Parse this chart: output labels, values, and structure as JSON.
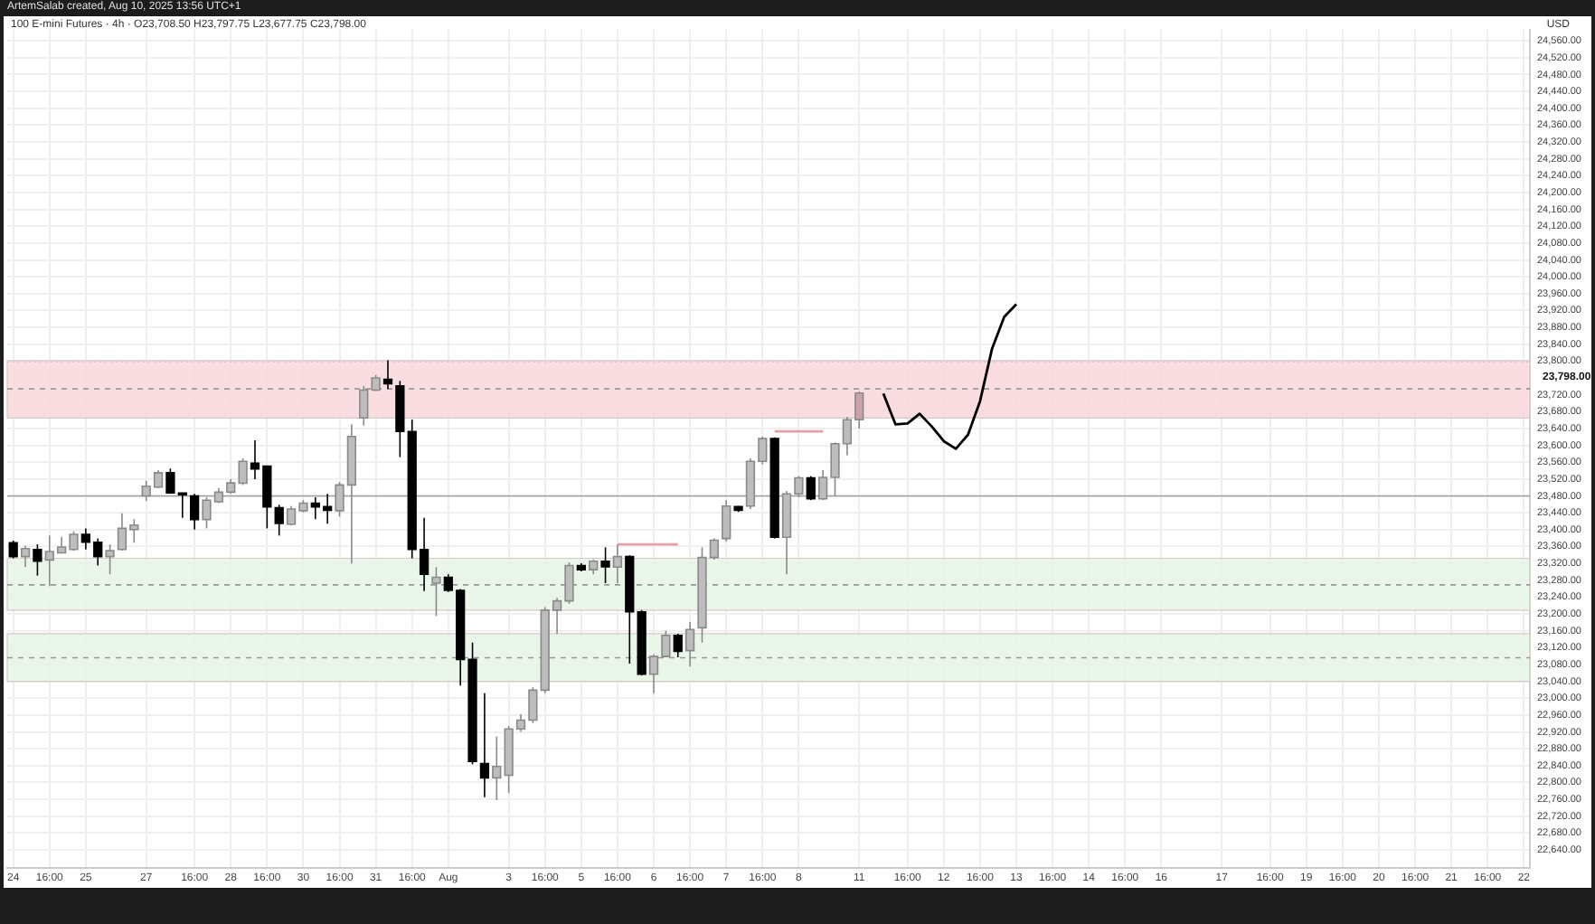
{
  "chart_data": {
    "type": "candlestick",
    "title": "100 E-mini Futures · 4h · O23,708.50 H23,797.75 L23,677.75 C23,798.00",
    "ylabel": "USD",
    "annotations": [
      "ArtemSalab created, Aug 10, 2025 13:56 UTC+1"
    ],
    "categories": [
      "24",
      null,
      null,
      "16:00",
      null,
      null,
      "25",
      null,
      null,
      null,
      null,
      "27",
      null,
      null,
      null,
      "16:00",
      null,
      null,
      "28",
      null,
      null,
      "16:00",
      null,
      null,
      "30",
      null,
      null,
      "16:00",
      null,
      null,
      "31",
      null,
      null,
      "16:00",
      null,
      null,
      "Aug",
      null,
      null,
      null,
      null,
      "3",
      null,
      null,
      "16:00",
      null,
      null,
      "5",
      null,
      null,
      "16:00",
      null,
      null,
      "6",
      null,
      null,
      "16:00",
      null,
      null,
      "7",
      null,
      null,
      "16:00",
      null,
      null,
      "8",
      null,
      null,
      null,
      null,
      "11",
      null,
      null,
      null,
      "16:00",
      null,
      null,
      "12",
      null,
      null,
      "16:00",
      null,
      null,
      "13",
      null,
      null,
      "16:00",
      null,
      null,
      "14",
      null,
      null,
      "16:00",
      null,
      null,
      "16",
      null,
      null,
      null,
      null,
      "17",
      null,
      null,
      null,
      "16:00",
      null,
      null,
      "19",
      null,
      null,
      "16:00",
      null,
      null,
      "20",
      null,
      null,
      "16:00",
      null,
      null,
      "21",
      null,
      null,
      "16:00",
      null,
      null,
      "22"
    ],
    "ohlc": [
      [
        23369,
        23374,
        23332,
        23336
      ],
      [
        23336,
        23362,
        23311,
        23355
      ],
      [
        23353,
        23365,
        23291,
        23325
      ],
      [
        23328,
        23386,
        23266,
        23348
      ],
      [
        23345,
        23383,
        23345,
        23359
      ],
      [
        23353,
        23396,
        23350,
        23389
      ],
      [
        23389,
        23403,
        23353,
        23370
      ],
      [
        23370,
        23379,
        23315,
        23336
      ],
      [
        23336,
        23365,
        23294,
        23350
      ],
      [
        23353,
        23439,
        23350,
        23403
      ],
      [
        23400,
        23425,
        23369,
        23411
      ],
      [
        23480,
        23516,
        23468,
        23503
      ],
      [
        23501,
        23541,
        23499,
        23535
      ],
      [
        23535,
        23545,
        23485,
        23487
      ],
      [
        23487,
        23487,
        23428,
        23483
      ],
      [
        23480,
        23485,
        23400,
        23424
      ],
      [
        23424,
        23477,
        23403,
        23470
      ],
      [
        23466,
        23499,
        23463,
        23489
      ],
      [
        23489,
        23520,
        23485,
        23511
      ],
      [
        23510,
        23569,
        23506,
        23562
      ],
      [
        23558,
        23612,
        23520,
        23544
      ],
      [
        23551,
        23551,
        23403,
        23454
      ],
      [
        23452,
        23459,
        23386,
        23415
      ],
      [
        23413,
        23456,
        23410,
        23449
      ],
      [
        23445,
        23470,
        23441,
        23463
      ],
      [
        23463,
        23477,
        23425,
        23454
      ],
      [
        23455,
        23485,
        23414,
        23446
      ],
      [
        23445,
        23513,
        23431,
        23506
      ],
      [
        23506,
        23650,
        23319,
        23621
      ],
      [
        23665,
        23741,
        23647,
        23731
      ],
      [
        23731,
        23767,
        23729,
        23760
      ],
      [
        23757,
        23802,
        23734,
        23746
      ],
      [
        23741,
        23753,
        23572,
        23633
      ],
      [
        23633,
        23661,
        23332,
        23353
      ],
      [
        23353,
        23428,
        23254,
        23294
      ],
      [
        23273,
        23311,
        23195,
        23287
      ],
      [
        23287,
        23294,
        23252,
        23256
      ],
      [
        23256,
        23259,
        23030,
        23092
      ],
      [
        23092,
        23132,
        22843,
        22850
      ],
      [
        22845,
        23012,
        22765,
        22811
      ],
      [
        22811,
        22909,
        22758,
        22838
      ],
      [
        22817,
        22934,
        22775,
        22927
      ],
      [
        22927,
        22962,
        22920,
        22948
      ],
      [
        22948,
        23026,
        22941,
        23019
      ],
      [
        23019,
        23216,
        23012,
        23209
      ],
      [
        23209,
        23238,
        23153,
        23231
      ],
      [
        23231,
        23322,
        23224,
        23315
      ],
      [
        23315,
        23320,
        23301,
        23305
      ],
      [
        23305,
        23329,
        23294,
        23325
      ],
      [
        23325,
        23358,
        23273,
        23312
      ],
      [
        23311,
        23365,
        23273,
        23336
      ],
      [
        23336,
        23339,
        23082,
        23205
      ],
      [
        23205,
        23209,
        23054,
        23057
      ],
      [
        23057,
        23104,
        23012,
        23099
      ],
      [
        23099,
        23160,
        23097,
        23149
      ],
      [
        23149,
        23153,
        23097,
        23111
      ],
      [
        23113,
        23181,
        23075,
        23163
      ],
      [
        23167,
        23358,
        23132,
        23334
      ],
      [
        23334,
        23379,
        23329,
        23375
      ],
      [
        23379,
        23470,
        23372,
        23456
      ],
      [
        23455,
        23456,
        23442,
        23446
      ],
      [
        23456,
        23569,
        23449,
        23562
      ],
      [
        23562,
        23621,
        23555,
        23616
      ],
      [
        23616,
        23619,
        23379,
        23382
      ],
      [
        23382,
        23492,
        23294,
        23485
      ],
      [
        23485,
        23527,
        23477,
        23523
      ],
      [
        23523,
        23527,
        23470,
        23473
      ],
      [
        23473,
        23541,
        23470,
        23524
      ],
      [
        23524,
        23607,
        23480,
        23604
      ],
      [
        23604,
        23668,
        23576,
        23661
      ],
      [
        23661,
        23728,
        23640,
        23724
      ],
      null,
      null,
      null,
      null,
      null,
      null,
      null,
      null,
      null,
      null,
      null,
      null,
      null,
      null,
      null,
      null,
      null,
      null,
      null,
      null,
      null,
      null,
      null,
      null,
      null,
      null,
      null,
      null,
      null,
      null,
      null,
      null,
      null,
      null,
      null,
      null,
      null,
      null,
      null,
      null,
      null,
      null,
      null,
      null,
      null,
      null,
      null,
      null,
      null,
      null,
      null,
      null,
      null,
      null,
      null
    ],
    "colors": [
      "#000000",
      "#bdbdbd",
      "#000000",
      "#bdbdbd",
      "#bdbdbd",
      "#bdbdbd",
      "#000000",
      "#000000",
      "#bdbdbd",
      "#bdbdbd",
      "#bdbdbd",
      "#bdbdbd",
      "#bdbdbd",
      "#000000",
      "#000000",
      "#000000",
      "#bdbdbd",
      "#bdbdbd",
      "#bdbdbd",
      "#bdbdbd",
      "#000000",
      "#000000",
      "#000000",
      "#bdbdbd",
      "#bdbdbd",
      "#000000",
      "#000000",
      "#bdbdbd",
      "#bdbdbd",
      "#bdbdbd",
      "#bdbdbd",
      "#000000",
      "#000000",
      "#000000",
      "#000000",
      "#bdbdbd",
      "#000000",
      "#000000",
      "#000000",
      "#000000",
      "#bdbdbd",
      "#bdbdbd",
      "#bdbdbd",
      "#bdbdbd",
      "#bdbdbd",
      "#bdbdbd",
      "#bdbdbd",
      "#000000",
      "#bdbdbd",
      "#000000",
      "#bdbdbd",
      "#000000",
      "#000000",
      "#bdbdbd",
      "#bdbdbd",
      "#000000",
      "#bdbdbd",
      "#bdbdbd",
      "#bdbdbd",
      "#bdbdbd",
      "#000000",
      "#bdbdbd",
      "#bdbdbd",
      "#000000",
      "#bdbdbd",
      "#bdbdbd",
      "#000000",
      "#bdbdbd",
      "#bdbdbd",
      "#bdbdbd",
      "#c9a3a8",
      null,
      null,
      null,
      null,
      null,
      null,
      null,
      null,
      null,
      null,
      null,
      null,
      null,
      null,
      null,
      null,
      null,
      null,
      null,
      null,
      null,
      null,
      null,
      null,
      null,
      null,
      null,
      null,
      null,
      null,
      null,
      null,
      null,
      null,
      null,
      null,
      null,
      null,
      null,
      null,
      null,
      null,
      null,
      null,
      null,
      null,
      null,
      null,
      null,
      null,
      null,
      null,
      null,
      null,
      null
    ],
    "series": [
      {
        "type": "line",
        "color": "#000000",
        "values": [
          null,
          null,
          null,
          null,
          null,
          null,
          null,
          null,
          null,
          null,
          null,
          null,
          null,
          null,
          null,
          null,
          null,
          null,
          null,
          null,
          null,
          null,
          null,
          null,
          null,
          null,
          null,
          null,
          null,
          null,
          null,
          null,
          null,
          null,
          null,
          null,
          null,
          null,
          null,
          null,
          null,
          null,
          null,
          null,
          null,
          null,
          null,
          null,
          null,
          null,
          null,
          null,
          null,
          null,
          null,
          null,
          null,
          null,
          null,
          null,
          null,
          null,
          null,
          null,
          null,
          null,
          null,
          null,
          null,
          null,
          null,
          null,
          23723,
          23650,
          23652,
          23675,
          23645,
          23610,
          23592,
          23625,
          23705,
          23830,
          23905,
          23935,
          null,
          null,
          null,
          null,
          null,
          null,
          null,
          null,
          null,
          null,
          null,
          null,
          null,
          null,
          null,
          null,
          null,
          null,
          null,
          null,
          null,
          null,
          null,
          null,
          null,
          null,
          null,
          null,
          null,
          null,
          null,
          null,
          null,
          null,
          null,
          null,
          null,
          null,
          null,
          null,
          null,
          null
        ]
      },
      {
        "type": "line",
        "color": "#e8a0a8",
        "values": [
          null,
          null,
          null,
          null,
          null,
          null,
          null,
          null,
          null,
          null,
          null,
          null,
          null,
          null,
          null,
          null,
          null,
          null,
          null,
          null,
          null,
          null,
          null,
          null,
          null,
          null,
          null,
          null,
          null,
          null,
          null,
          null,
          null,
          null,
          null,
          null,
          null,
          null,
          null,
          null,
          null,
          null,
          null,
          null,
          null,
          null,
          null,
          null,
          null,
          null,
          23365,
          23365,
          23365,
          23365,
          23365,
          23365,
          null,
          null,
          null,
          null,
          null,
          null,
          null,
          23633,
          23633,
          23633,
          23633,
          23633,
          null,
          null,
          null,
          null,
          null,
          null,
          null,
          null,
          null,
          null,
          null,
          null,
          null,
          null,
          null,
          null,
          null,
          null,
          null,
          null,
          null,
          null,
          null,
          null,
          null,
          null,
          null,
          null,
          null,
          null,
          null,
          null,
          null,
          null,
          null,
          null,
          null,
          null,
          null,
          null,
          null,
          null,
          null,
          null,
          null,
          null,
          null,
          null,
          null,
          null,
          null,
          null,
          null,
          null,
          null,
          null,
          null,
          null
        ]
      }
    ],
    "ylim": [
      22598,
      24587
    ],
    "yticks": [
      {
        "value": 22640,
        "label": "22,640.00"
      },
      {
        "value": 22680,
        "label": "22,680.00"
      },
      {
        "value": 22720,
        "label": "22,720.00"
      },
      {
        "value": 22760,
        "label": "22,760.00"
      },
      {
        "value": 22800,
        "label": "22,800.00"
      },
      {
        "value": 22840,
        "label": "22,840.00"
      },
      {
        "value": 22880,
        "label": "22,880.00"
      },
      {
        "value": 22920,
        "label": "22,920.00"
      },
      {
        "value": 22960,
        "label": "22,960.00"
      },
      {
        "value": 23000,
        "label": "23,000.00"
      },
      {
        "value": 23040,
        "label": "23,040.00"
      },
      {
        "value": 23080,
        "label": "23,080.00"
      },
      {
        "value": 23120,
        "label": "23,120.00"
      },
      {
        "value": 23160,
        "label": "23,160.00"
      },
      {
        "value": 23200,
        "label": "23,200.00"
      },
      {
        "value": 23240,
        "label": "23,240.00"
      },
      {
        "value": 23280,
        "label": "23,280.00"
      },
      {
        "value": 23320,
        "label": "23,320.00"
      },
      {
        "value": 23360,
        "label": "23,360.00"
      },
      {
        "value": 23400,
        "label": "23,400.00"
      },
      {
        "value": 23440,
        "label": "23,440.00"
      },
      {
        "value": 23480,
        "label": "23,480.00"
      },
      {
        "value": 23520,
        "label": "23,520.00"
      },
      {
        "value": 23560,
        "label": "23,560.00"
      },
      {
        "value": 23600,
        "label": "23,600.00"
      },
      {
        "value": 23640,
        "label": "23,640.00"
      },
      {
        "value": 23680,
        "label": "23,680.00"
      },
      {
        "value": 23720,
        "label": "23,720.00"
      },
      {
        "value": 23800,
        "label": "23,800.00"
      },
      {
        "value": 23840,
        "label": "23,840.00"
      },
      {
        "value": 23880,
        "label": "23,880.00"
      },
      {
        "value": 23920,
        "label": "23,920.00"
      },
      {
        "value": 23960,
        "label": "23,960.00"
      },
      {
        "value": 24000,
        "label": "24,000.00"
      },
      {
        "value": 24040,
        "label": "24,040.00"
      },
      {
        "value": 24080,
        "label": "24,080.00"
      },
      {
        "value": 24120,
        "label": "24,120.00"
      },
      {
        "value": 24160,
        "label": "24,160.00"
      },
      {
        "value": 24200,
        "label": "24,200.00"
      },
      {
        "value": 24240,
        "label": "24,240.00"
      },
      {
        "value": 24280,
        "label": "24,280.00"
      },
      {
        "value": 24320,
        "label": "24,320.00"
      },
      {
        "value": 24360,
        "label": "24,360.00"
      },
      {
        "value": 24400,
        "label": "24,400.00"
      },
      {
        "value": 24440,
        "label": "24,440.00"
      },
      {
        "value": 24480,
        "label": "24,480.00"
      },
      {
        "value": 24520,
        "label": "24,520.00"
      },
      {
        "value": 24560,
        "label": "24,560.00"
      }
    ],
    "bands": [
      {
        "axis": "y",
        "from": 23665,
        "to": 23801,
        "color": "#f8d7da"
      },
      {
        "axis": "y",
        "from": 23209,
        "to": 23332,
        "color": "#e8f4e6"
      },
      {
        "axis": "y",
        "from": 23040,
        "to": 23153,
        "color": "#e8f4e6"
      }
    ],
    "ref_lines": [
      {
        "axis": "y",
        "value": 23480,
        "color": "#9e9e9e",
        "line_style": "solid"
      },
      {
        "axis": "y",
        "value": 23734,
        "color": "#999999",
        "line_style": "dashed"
      },
      {
        "axis": "y",
        "value": 23269,
        "color": "#999999",
        "line_style": "dashed"
      },
      {
        "axis": "y",
        "value": 23096,
        "color": "#999999",
        "line_style": "dashed"
      },
      {
        "axis": "y",
        "value": 23798,
        "label": "23,798.00",
        "color": "#cfcfcf",
        "line_style": "dotted"
      }
    ],
    "grid": true
  }
}
